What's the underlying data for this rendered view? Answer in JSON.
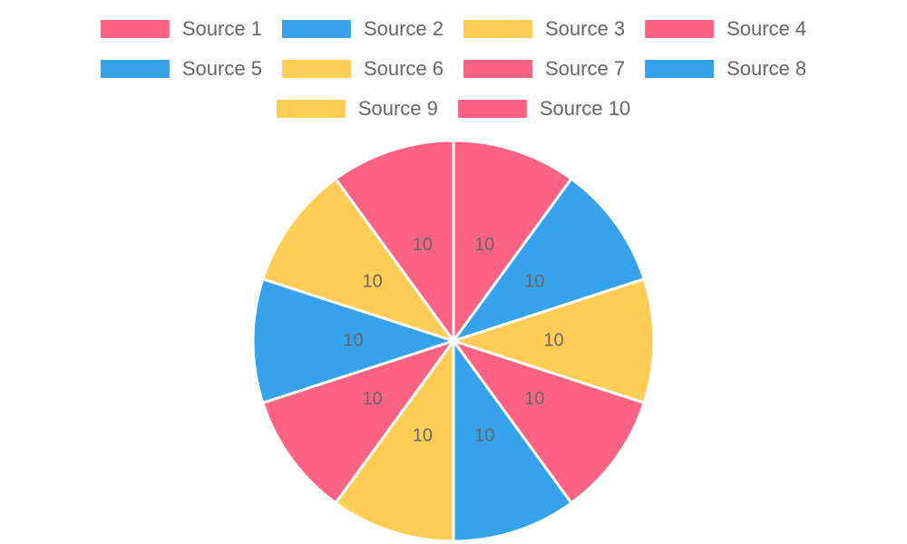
{
  "chart_data": {
    "type": "pie",
    "categories": [
      "Source 1",
      "Source 2",
      "Source 3",
      "Source 4",
      "Source 5",
      "Source 6",
      "Source 7",
      "Source 8",
      "Source 9",
      "Source 10"
    ],
    "values": [
      10,
      10,
      10,
      10,
      10,
      10,
      10,
      10,
      10,
      10
    ],
    "colors": [
      "#ff6384",
      "#36a2eb",
      "#ffcd56",
      "#ff6384",
      "#36a2eb",
      "#ffcd56",
      "#ff6384",
      "#36a2eb",
      "#ffcd56",
      "#ff6384"
    ],
    "legend": "top"
  }
}
